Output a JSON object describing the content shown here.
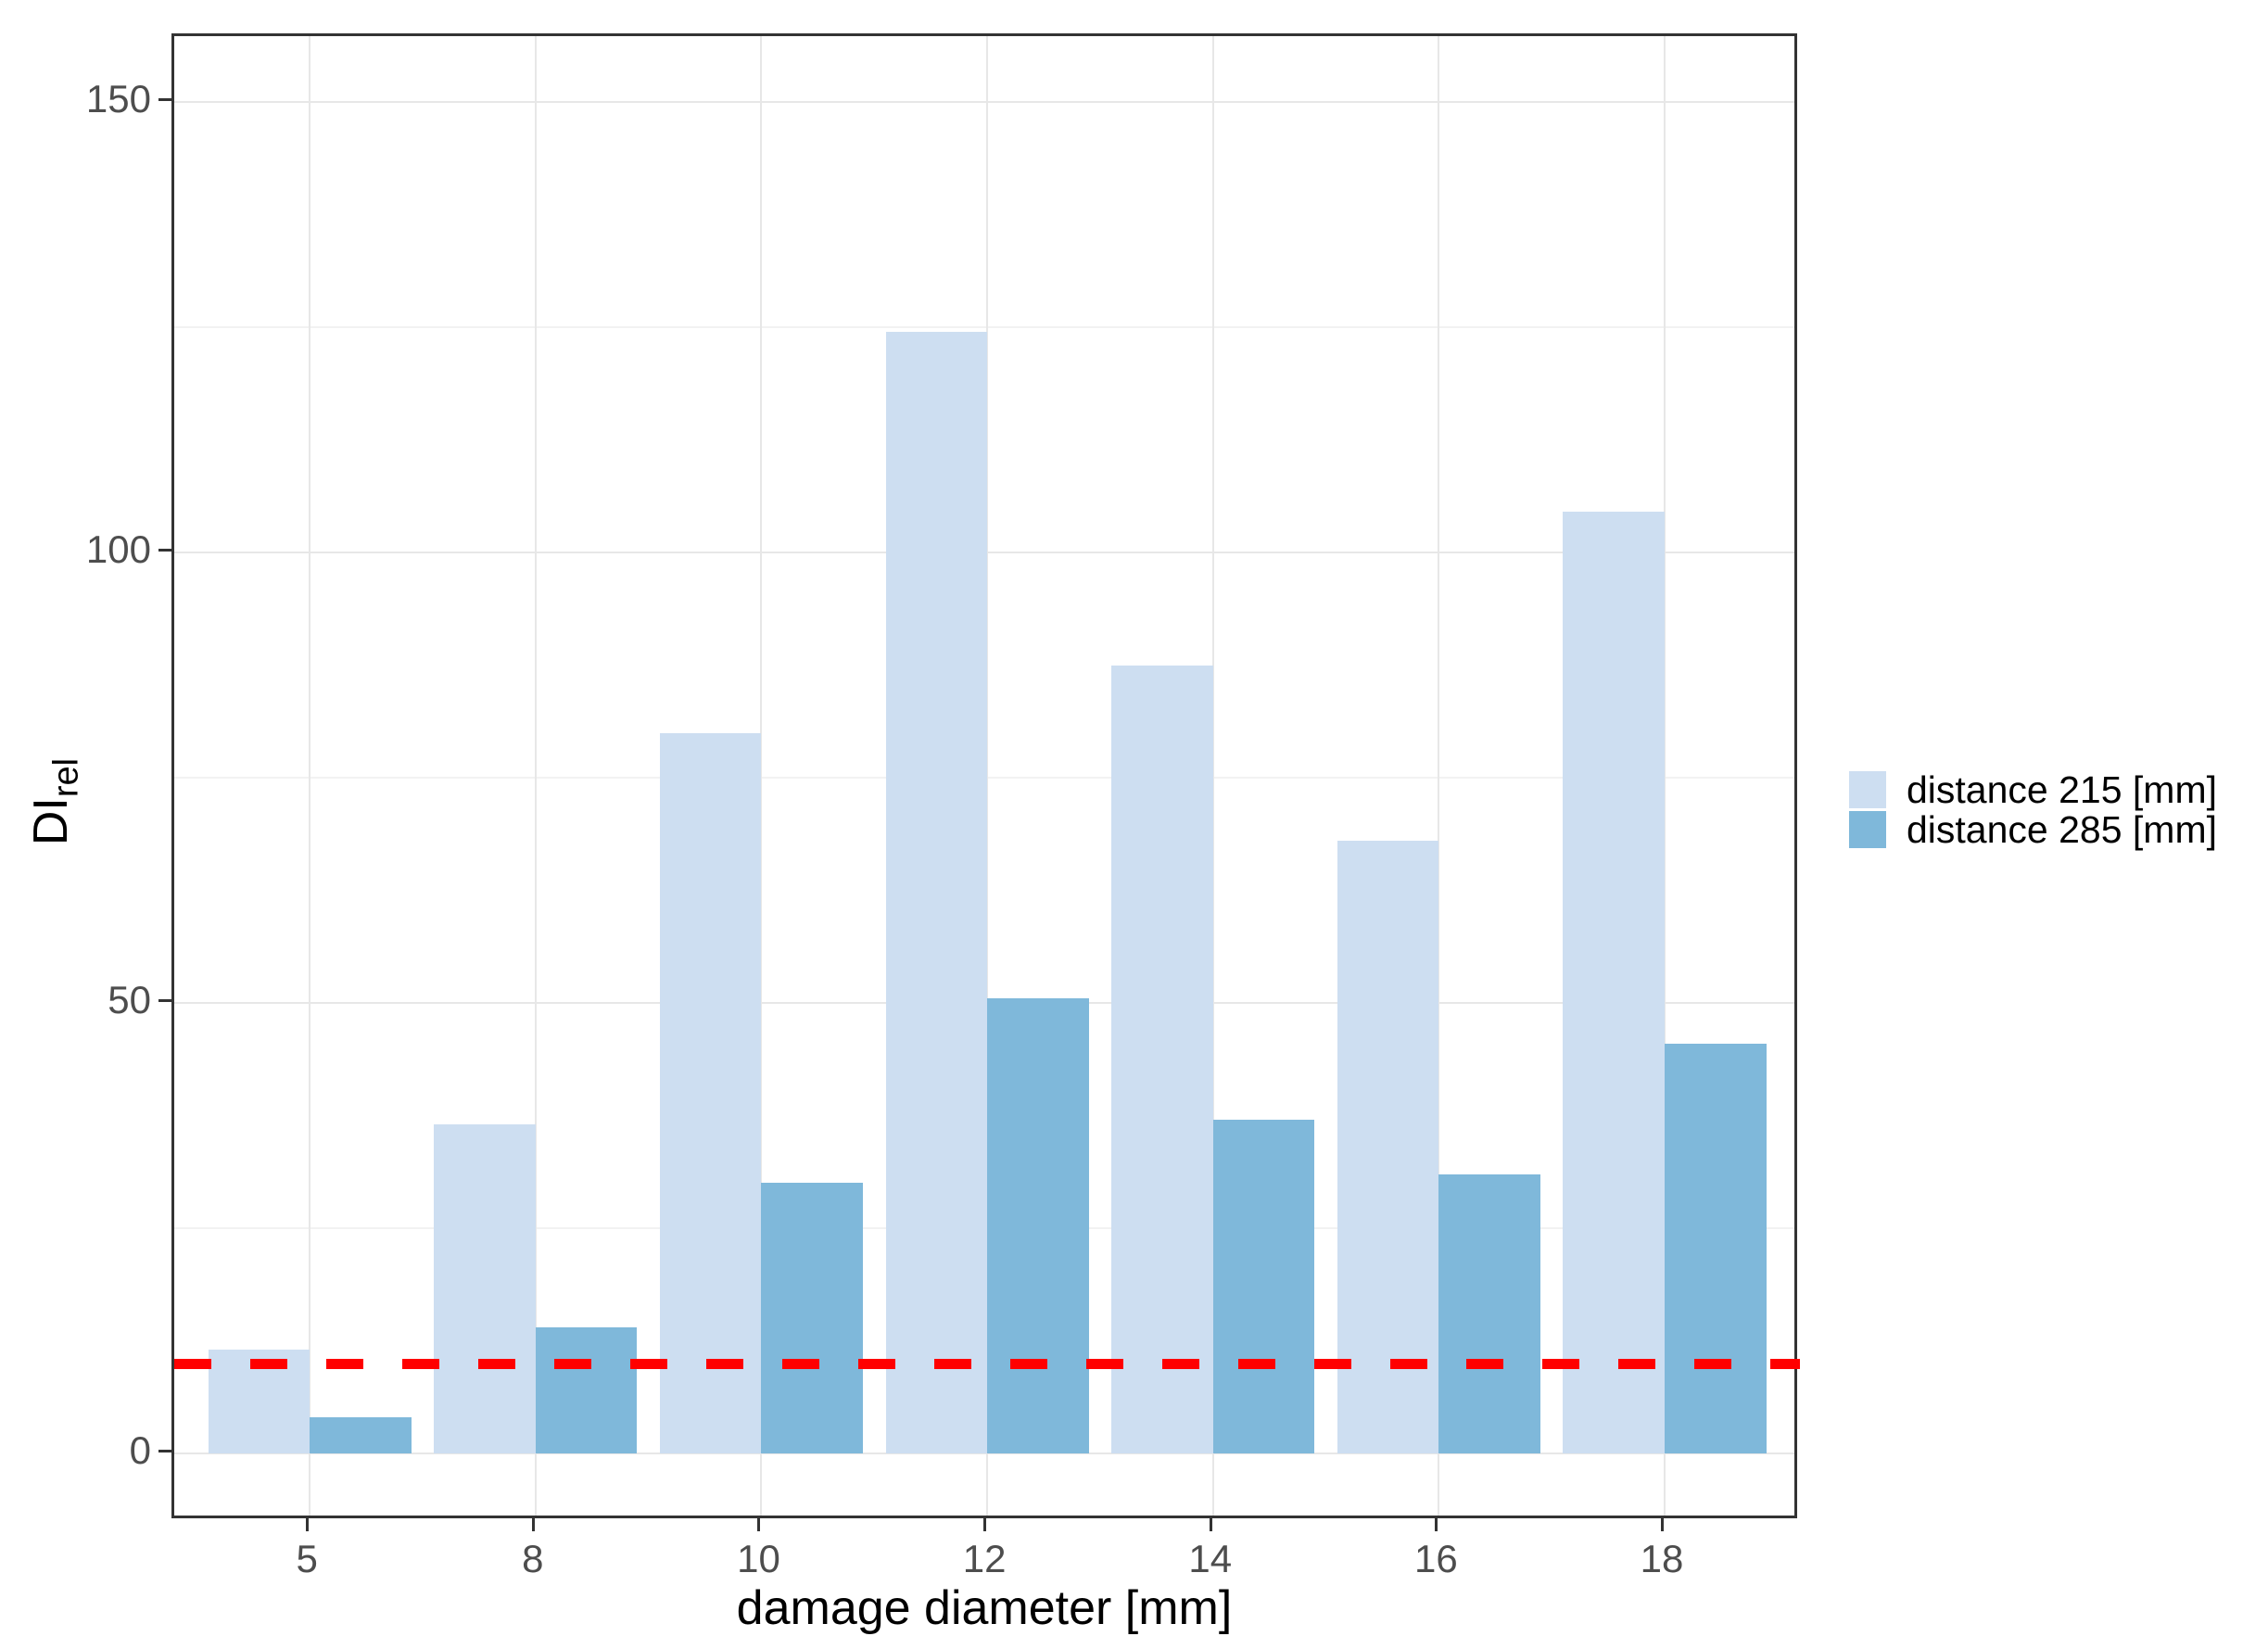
{
  "chart_data": {
    "type": "bar",
    "title": "",
    "xlabel": "damage diameter [mm]",
    "ylabel": "DI",
    "ylabel_subscript": "rel",
    "categories": [
      "5",
      "8",
      "10",
      "12",
      "14",
      "16",
      "18"
    ],
    "series": [
      {
        "name": "distance 215 [mm]",
        "color": "#cddef1",
        "values": [
          11.5,
          36.5,
          80,
          124.5,
          87.5,
          68,
          104.5
        ]
      },
      {
        "name": "distance 285 [mm]",
        "color": "#7fb8da",
        "values": [
          4,
          14,
          30,
          50.5,
          37,
          31,
          45.5
        ]
      }
    ],
    "reference_line": {
      "value": 10,
      "color": "#ff0000",
      "style": "dashed"
    },
    "y_ticks": [
      0,
      50,
      100,
      150
    ],
    "y_minor_ticks": [
      25,
      75,
      125
    ],
    "ylim": [
      -7.5,
      157.5
    ],
    "grid": "horizontal-major-minor-and-vertical-major",
    "legend_position": "right-middle",
    "colors": {
      "panel_border": "#333333",
      "gridline_major": "#e7e7e7",
      "gridline_minor": "#f2f2f2",
      "tick_label": "#4d4d4d",
      "axis_title": "#000000"
    }
  }
}
